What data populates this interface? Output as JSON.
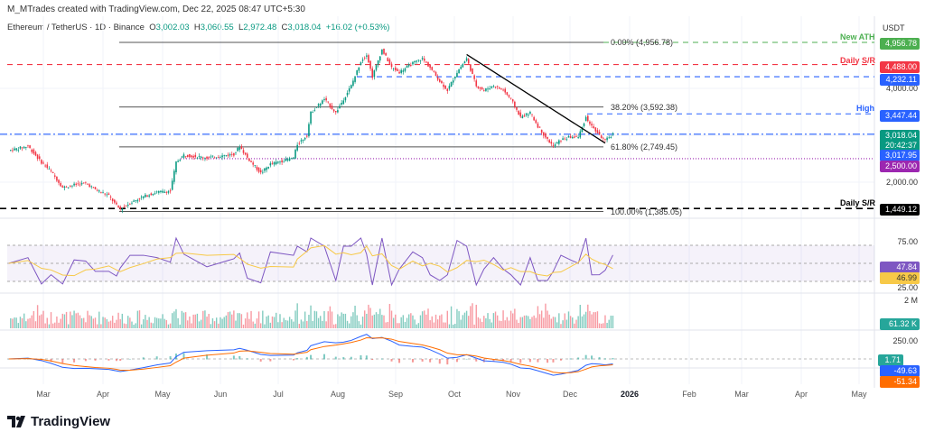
{
  "header": {
    "credit": "M_MTrades created with TradingView.com, Dec 22, 2025 08:47 UTC+5:30",
    "symbol": "Ethereum / TetherUS · 1D · Binance",
    "o_label": "O",
    "open": "3,002.03",
    "h_label": "H",
    "high": "3,060.55",
    "l_label": "L",
    "low": "2,972.48",
    "c_label": "C",
    "close": "3,018.04",
    "change": "+16.02 (+0.53%)"
  },
  "price_axis": {
    "currency": "USDT",
    "ticks": [
      "4,000.00",
      "2,000.00"
    ],
    "labels": [
      {
        "text": "4,956.78",
        "color": "#4caf50"
      },
      {
        "text": "4,488.00",
        "color": "#f23645"
      },
      {
        "text": "4,232.11",
        "color": "#2962ff"
      },
      {
        "text": "3,447.44",
        "color": "#2962ff"
      },
      {
        "text": "3,018.04",
        "color": "#089981"
      },
      {
        "text": "20:42:37",
        "color": "#089981"
      },
      {
        "text": "3,017.95",
        "color": "#2962ff"
      },
      {
        "text": "2,500.00",
        "color": "#9c27b0"
      },
      {
        "text": "1,449.12",
        "color": "#000000"
      }
    ]
  },
  "annotations": {
    "new_ath": "New ATH",
    "daily_sr_top": "Daily S/R",
    "high": "High",
    "daily_sr_bottom": "Daily S/R"
  },
  "fib": {
    "l0": "0.00% (4,956.78)",
    "l382": "38.20% (3,592.38)",
    "l618": "61.80% (2,749.45)",
    "l100": "100.00% (1,385.05)"
  },
  "rsi": {
    "ticks": [
      "75.00",
      "25.00"
    ],
    "value": "47.84",
    "ma": "46.99",
    "colors": {
      "rsi": "#7e57c2",
      "ma": "#f7c948"
    }
  },
  "volume": {
    "tick": "2 M",
    "value": "61.32 K"
  },
  "macd": {
    "tick": "250.00",
    "hist": "1.71",
    "macd": "-49.63",
    "signal": "-51.34",
    "colors": {
      "macd": "#2962ff",
      "signal": "#ff6d00"
    }
  },
  "time_axis": [
    "Mar",
    "Apr",
    "May",
    "Jun",
    "Jul",
    "Aug",
    "Sep",
    "Oct",
    "Nov",
    "Dec",
    "2026",
    "Feb",
    "Mar",
    "Apr",
    "May"
  ],
  "branding": "TradingView",
  "chart_data": {
    "type": "candlestick",
    "title": "Ethereum / TetherUS · 1D · Binance",
    "y_unit": "USDT",
    "ylim": [
      1350,
      5000
    ],
    "x": [
      "2025-02-11",
      "2025-02-21",
      "2025-02-28",
      "2025-03-05",
      "2025-03-11",
      "2025-03-17",
      "2025-03-23",
      "2025-03-28",
      "2025-04-04",
      "2025-04-08",
      "2025-04-10",
      "2025-04-15",
      "2025-04-22",
      "2025-04-29",
      "2025-05-06",
      "2025-05-09",
      "2025-05-13",
      "2025-05-25",
      "2025-06-08",
      "2025-06-11",
      "2025-06-15",
      "2025-06-22",
      "2025-06-27",
      "2025-07-09",
      "2025-07-11",
      "2025-07-16",
      "2025-07-18",
      "2025-07-25",
      "2025-07-31",
      "2025-08-04",
      "2025-08-08",
      "2025-08-13",
      "2025-08-16",
      "2025-08-19",
      "2025-08-24",
      "2025-08-29",
      "2025-09-02",
      "2025-09-09",
      "2025-09-14",
      "2025-09-18",
      "2025-09-23",
      "2025-09-27",
      "2025-10-02",
      "2025-10-07",
      "2025-10-12",
      "2025-10-16",
      "2025-10-21",
      "2025-10-26",
      "2025-10-30",
      "2025-11-04",
      "2025-11-09",
      "2025-11-13",
      "2025-11-18",
      "2025-11-21",
      "2025-11-25",
      "2025-11-30",
      "2025-12-04",
      "2025-12-08",
      "2025-12-11",
      "2025-12-15",
      "2025-12-18",
      "2025-12-22"
    ],
    "close": [
      2671,
      2766,
      2423,
      2233,
      1890,
      1947,
      1985,
      1852,
      1719,
      1509,
      1433,
      1566,
      1700,
      1795,
      1814,
      2423,
      2576,
      2519,
      2595,
      2766,
      2519,
      2195,
      2385,
      2519,
      2804,
      2995,
      3471,
      3757,
      3471,
      3757,
      4042,
      4557,
      4709,
      4233,
      4804,
      4423,
      4328,
      4519,
      4614,
      4423,
      4138,
      3947,
      4328,
      4614,
      4042,
      3947,
      4042,
      3947,
      3757,
      3376,
      3471,
      3185,
      2900,
      2766,
      2900,
      2957,
      2957,
      3376,
      3185,
      2995,
      2880,
      3018
    ],
    "levels": [
      {
        "price": 4956.78,
        "label": "New ATH",
        "color": "#4caf50"
      },
      {
        "price": 4488.0,
        "label": "Daily S/R",
        "color": "#f23645"
      },
      {
        "price": 4232.11,
        "color": "#2962ff"
      },
      {
        "price": 3447.44,
        "label": "High",
        "color": "#2962ff"
      },
      {
        "price": 3018.04,
        "color": "#2962ff"
      },
      {
        "price": 2500.0,
        "color": "#9c27b0"
      },
      {
        "price": 1449.12,
        "label": "Daily S/R",
        "color": "#000000"
      }
    ],
    "fibonacci": [
      {
        "level": "0.00%",
        "price": 4956.78
      },
      {
        "level": "38.20%",
        "price": 3592.38
      },
      {
        "level": "61.80%",
        "price": 2749.45
      },
      {
        "level": "100.00%",
        "price": 1385.05
      }
    ],
    "trendline": {
      "from": [
        "2025-10-07",
        4700
      ],
      "to": [
        "2025-12-18",
        2830
      ]
    },
    "up_color": "#089981",
    "down_color": "#f23645"
  }
}
